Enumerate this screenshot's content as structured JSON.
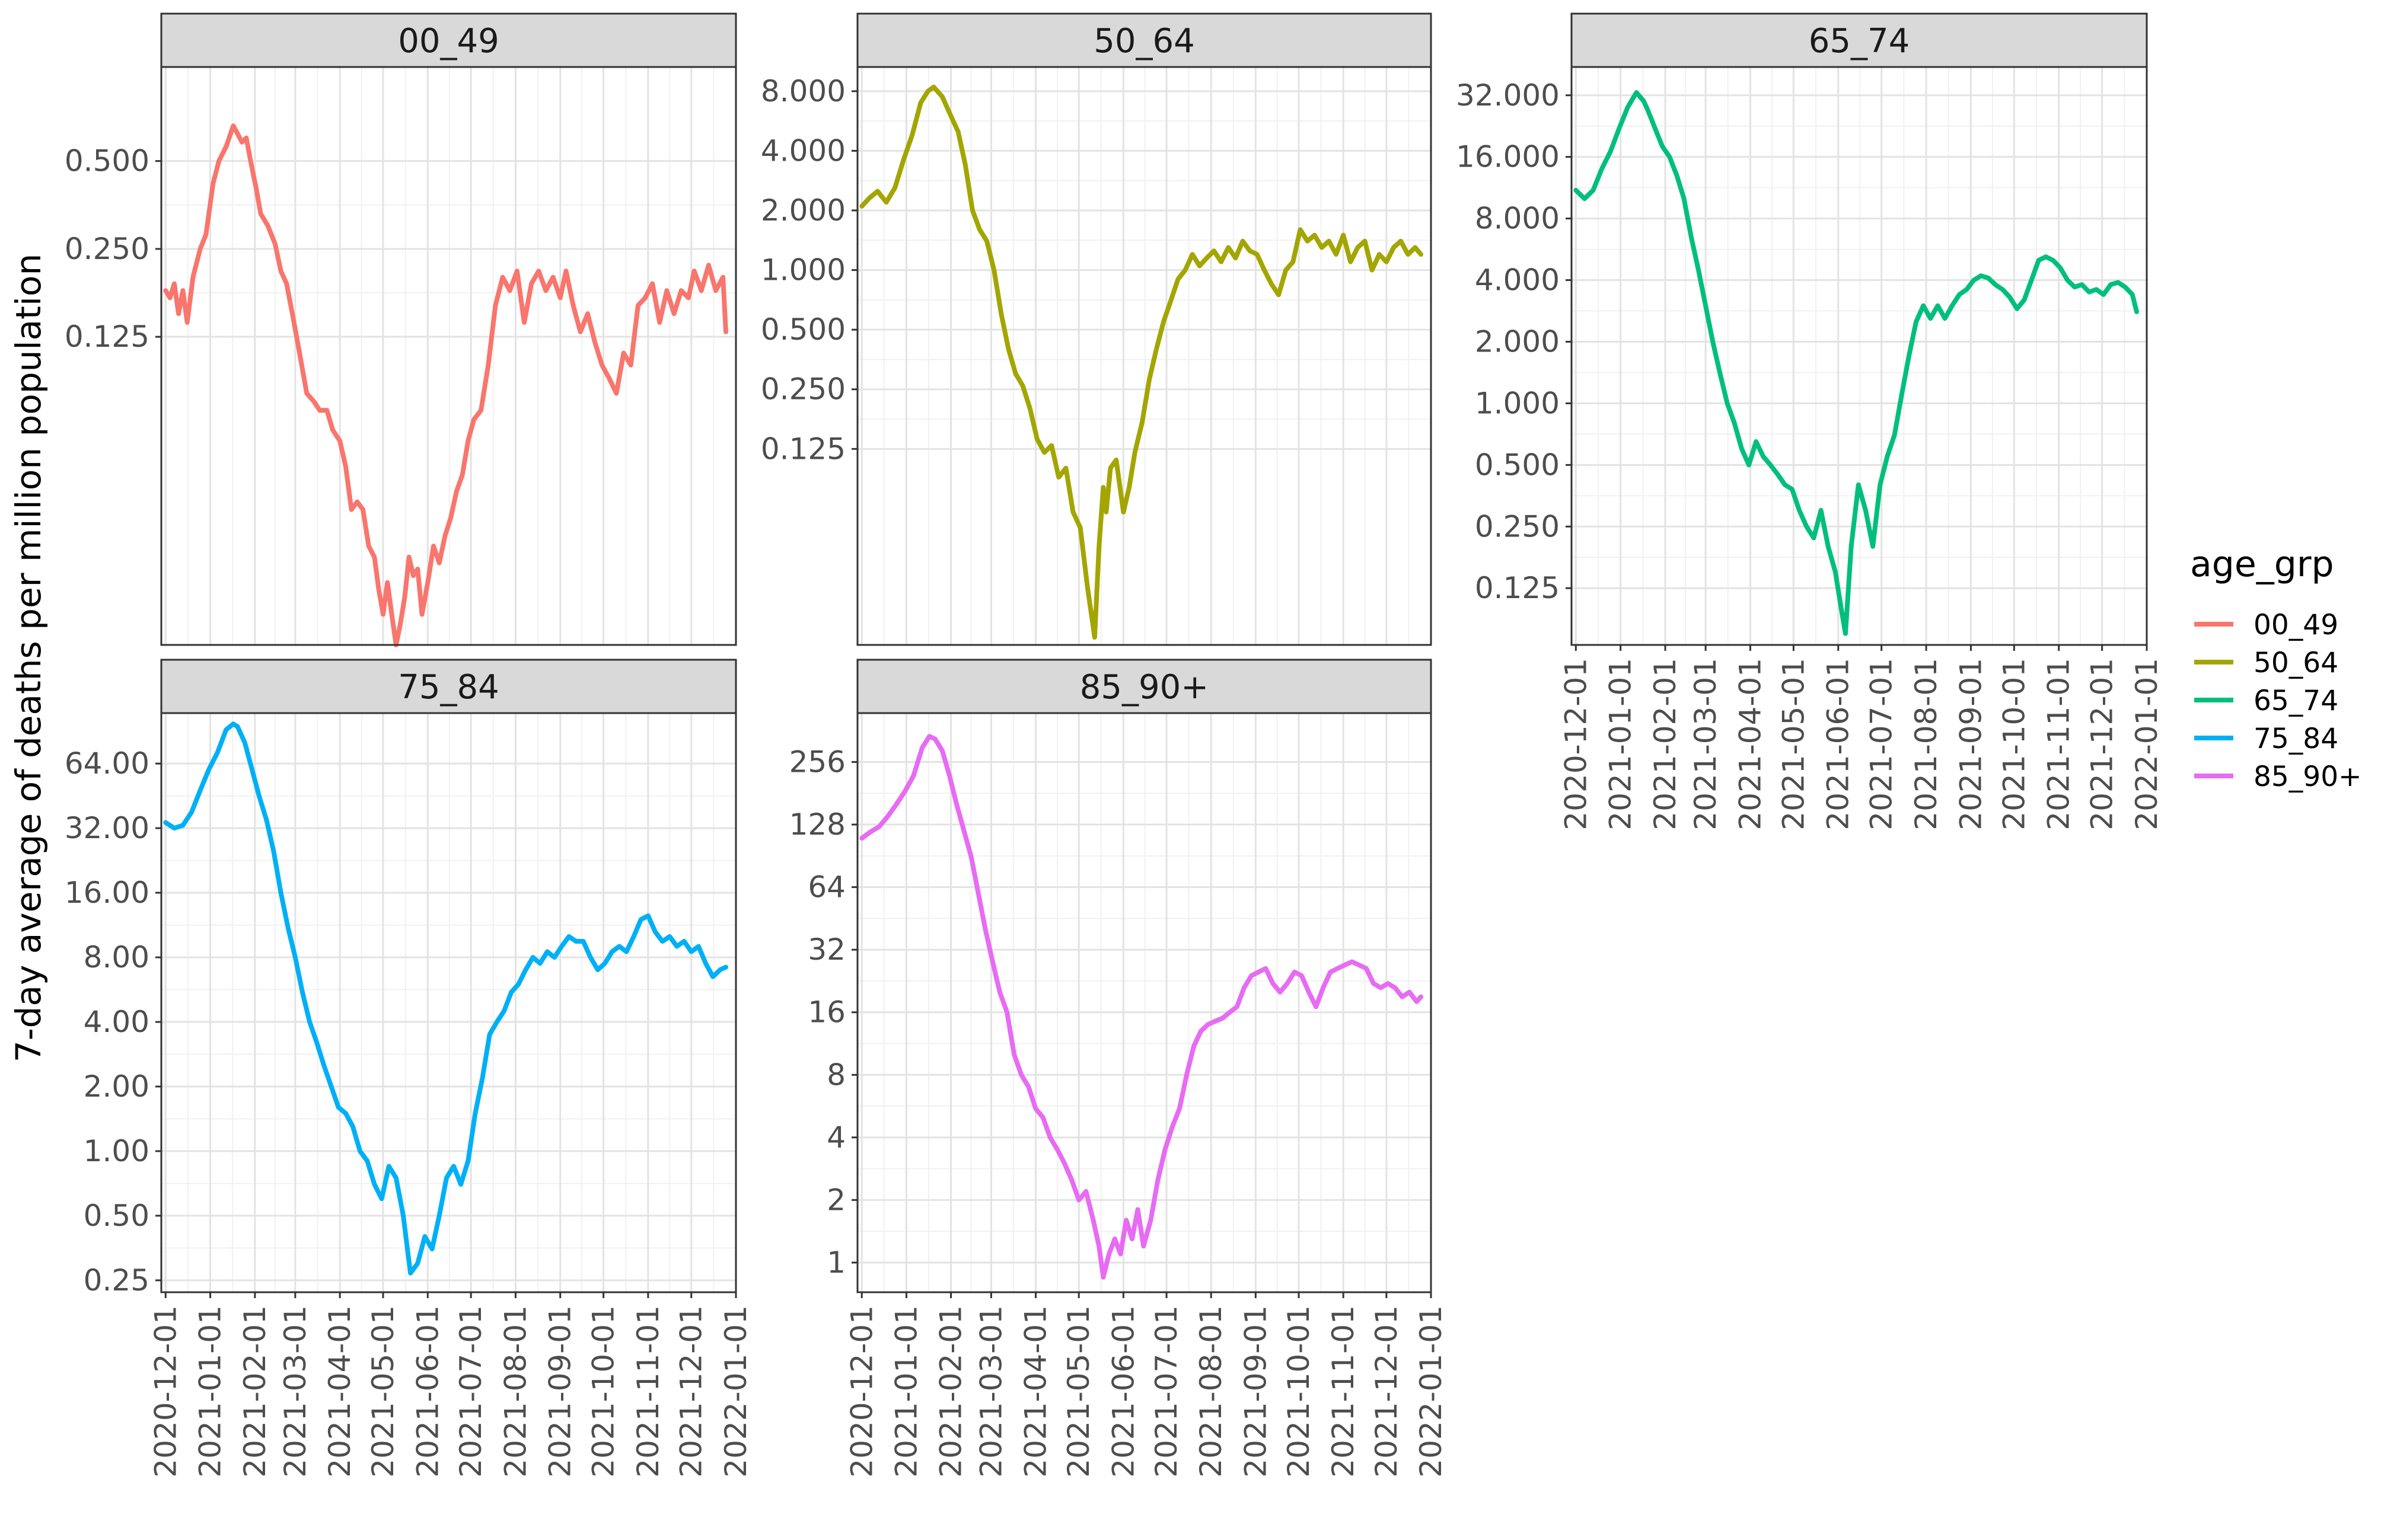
{
  "chart_data": {
    "type": "line",
    "title": "",
    "xlabel": "",
    "ylabel": "7-day average of deaths per million population",
    "x_scale": "date",
    "y_scale": "log2",
    "facet_layout": "wrap, 3 columns, free y scales, x axis shown at bottom of each column",
    "grid": true,
    "x_range": [
      "2020-11-28",
      "2022-01-01"
    ],
    "x_ticks": [
      "2020-12-01",
      "2021-01-01",
      "2021-02-01",
      "2021-03-01",
      "2021-04-01",
      "2021-05-01",
      "2021-06-01",
      "2021-07-01",
      "2021-08-01",
      "2021-09-01",
      "2021-10-01",
      "2021-11-01",
      "2021-12-01",
      "2022-01-01"
    ],
    "legend": {
      "title": "age_grp",
      "placement": "right",
      "entries": [
        {
          "name": "00_49",
          "color": "#F8766D"
        },
        {
          "name": "50_64",
          "color": "#A3A500"
        },
        {
          "name": "65_74",
          "color": "#00BF7D"
        },
        {
          "name": "75_84",
          "color": "#00B0F6"
        },
        {
          "name": "85_90+",
          "color": "#E76BF3"
        }
      ]
    },
    "panels": [
      {
        "name": "00_49",
        "color": "#F8766D",
        "ylim": [
          0.011,
          1.05
        ],
        "y_ticks": [
          0.5,
          0.25,
          0.125
        ],
        "y_tick_labels": [
          "0.500",
          "0.250",
          "0.125"
        ],
        "x": [
          "2020-12-01",
          "2020-12-04",
          "2020-12-07",
          "2020-12-10",
          "2020-12-13",
          "2020-12-16",
          "2020-12-20",
          "2020-12-25",
          "2020-12-29",
          "2021-01-03",
          "2021-01-07",
          "2021-01-12",
          "2021-01-17",
          "2021-01-20",
          "2021-01-23",
          "2021-01-26",
          "2021-01-29",
          "2021-02-02",
          "2021-02-05",
          "2021-02-10",
          "2021-02-15",
          "2021-02-19",
          "2021-02-23",
          "2021-02-27",
          "2021-03-04",
          "2021-03-09",
          "2021-03-14",
          "2021-03-18",
          "2021-03-23",
          "2021-03-27",
          "2021-04-01",
          "2021-04-05",
          "2021-04-09",
          "2021-04-13",
          "2021-04-17",
          "2021-04-21",
          "2021-04-25",
          "2021-04-28",
          "2021-05-01",
          "2021-05-04",
          "2021-05-07",
          "2021-05-10",
          "2021-05-13",
          "2021-05-16",
          "2021-05-19",
          "2021-05-22",
          "2021-05-25",
          "2021-05-28",
          "2021-06-01",
          "2021-06-05",
          "2021-06-09",
          "2021-06-13",
          "2021-06-17",
          "2021-06-21",
          "2021-06-25",
          "2021-06-29",
          "2021-07-03",
          "2021-07-08",
          "2021-07-13",
          "2021-07-18",
          "2021-07-23",
          "2021-07-28",
          "2021-08-02",
          "2021-08-07",
          "2021-08-12",
          "2021-08-17",
          "2021-08-22",
          "2021-08-27",
          "2021-09-01",
          "2021-09-05",
          "2021-09-10",
          "2021-09-15",
          "2021-09-20",
          "2021-09-25",
          "2021-09-30",
          "2021-10-05",
          "2021-10-10",
          "2021-10-15",
          "2021-10-20",
          "2021-10-25",
          "2021-10-30",
          "2021-11-04",
          "2021-11-09",
          "2021-11-14",
          "2021-11-19",
          "2021-11-24",
          "2021-11-29",
          "2021-12-03",
          "2021-12-08",
          "2021-12-13",
          "2021-12-18",
          "2021-12-23",
          "2021-12-25"
        ],
        "y": [
          0.18,
          0.17,
          0.19,
          0.15,
          0.18,
          0.14,
          0.2,
          0.25,
          0.28,
          0.42,
          0.5,
          0.56,
          0.66,
          0.62,
          0.58,
          0.6,
          0.5,
          0.4,
          0.33,
          0.3,
          0.26,
          0.21,
          0.19,
          0.15,
          0.11,
          0.08,
          0.075,
          0.07,
          0.07,
          0.06,
          0.055,
          0.045,
          0.032,
          0.034,
          0.032,
          0.024,
          0.022,
          0.017,
          0.014,
          0.018,
          0.014,
          0.011,
          0.013,
          0.016,
          0.022,
          0.019,
          0.02,
          0.014,
          0.018,
          0.024,
          0.021,
          0.026,
          0.03,
          0.037,
          0.042,
          0.055,
          0.065,
          0.07,
          0.1,
          0.16,
          0.2,
          0.18,
          0.21,
          0.14,
          0.19,
          0.21,
          0.18,
          0.2,
          0.17,
          0.21,
          0.16,
          0.13,
          0.15,
          0.12,
          0.1,
          0.09,
          0.08,
          0.11,
          0.1,
          0.16,
          0.17,
          0.19,
          0.14,
          0.18,
          0.15,
          0.18,
          0.17,
          0.21,
          0.18,
          0.22,
          0.18,
          0.2,
          0.13
        ]
      },
      {
        "name": "50_64",
        "color": "#A3A500",
        "ylim": [
          0.0128,
          10.6
        ],
        "y_ticks": [
          8,
          4,
          2,
          1,
          0.5,
          0.25,
          0.125
        ],
        "y_tick_labels": [
          "8.000",
          "4.000",
          "2.000",
          "1.000",
          "0.500",
          "0.250",
          "0.125"
        ],
        "x": [
          "2020-12-01",
          "2020-12-06",
          "2020-12-12",
          "2020-12-18",
          "2020-12-24",
          "2020-12-30",
          "2021-01-05",
          "2021-01-11",
          "2021-01-16",
          "2021-01-20",
          "2021-01-26",
          "2021-02-01",
          "2021-02-06",
          "2021-02-11",
          "2021-02-16",
          "2021-02-21",
          "2021-02-26",
          "2021-03-03",
          "2021-03-08",
          "2021-03-13",
          "2021-03-18",
          "2021-03-23",
          "2021-03-28",
          "2021-04-02",
          "2021-04-07",
          "2021-04-12",
          "2021-04-17",
          "2021-04-22",
          "2021-04-27",
          "2021-05-02",
          "2021-05-07",
          "2021-05-12",
          "2021-05-15",
          "2021-05-18",
          "2021-05-20",
          "2021-05-23",
          "2021-05-27",
          "2021-06-01",
          "2021-06-05",
          "2021-06-09",
          "2021-06-14",
          "2021-06-19",
          "2021-06-24",
          "2021-06-29",
          "2021-07-04",
          "2021-07-09",
          "2021-07-14",
          "2021-07-19",
          "2021-07-24",
          "2021-07-29",
          "2021-08-03",
          "2021-08-08",
          "2021-08-13",
          "2021-08-18",
          "2021-08-23",
          "2021-08-28",
          "2021-09-02",
          "2021-09-07",
          "2021-09-12",
          "2021-09-17",
          "2021-09-22",
          "2021-09-27",
          "2021-10-02",
          "2021-10-07",
          "2021-10-12",
          "2021-10-17",
          "2021-10-22",
          "2021-10-27",
          "2021-11-01",
          "2021-11-06",
          "2021-11-11",
          "2021-11-16",
          "2021-11-21",
          "2021-11-26",
          "2021-12-01",
          "2021-12-06",
          "2021-12-11",
          "2021-12-16",
          "2021-12-21",
          "2021-12-25"
        ],
        "y": [
          2.1,
          2.3,
          2.5,
          2.2,
          2.6,
          3.6,
          4.8,
          7.0,
          8.0,
          8.4,
          7.5,
          6.0,
          5.0,
          3.4,
          2.0,
          1.6,
          1.4,
          1.0,
          0.6,
          0.4,
          0.3,
          0.26,
          0.2,
          0.14,
          0.12,
          0.13,
          0.09,
          0.1,
          0.06,
          0.05,
          0.025,
          0.014,
          0.04,
          0.08,
          0.06,
          0.1,
          0.11,
          0.06,
          0.08,
          0.12,
          0.17,
          0.28,
          0.4,
          0.55,
          0.7,
          0.9,
          1.0,
          1.2,
          1.05,
          1.15,
          1.25,
          1.1,
          1.3,
          1.15,
          1.4,
          1.25,
          1.2,
          1.0,
          0.85,
          0.75,
          1.0,
          1.1,
          1.6,
          1.4,
          1.5,
          1.3,
          1.4,
          1.2,
          1.5,
          1.1,
          1.3,
          1.4,
          1.0,
          1.2,
          1.1,
          1.3,
          1.4,
          1.2,
          1.3,
          1.2
        ]
      },
      {
        "name": "65_74",
        "color": "#00BF7D",
        "ylim": [
          0.066,
          44
        ],
        "y_ticks": [
          32,
          16,
          8,
          4,
          2,
          1,
          0.5,
          0.25,
          0.125
        ],
        "y_tick_labels": [
          "32.000",
          "16.000",
          "8.000",
          "4.000",
          "2.000",
          "1.000",
          "0.500",
          "0.250",
          "0.125"
        ],
        "x": [
          "2020-12-01",
          "2020-12-07",
          "2020-12-13",
          "2020-12-19",
          "2020-12-25",
          "2020-12-31",
          "2021-01-06",
          "2021-01-12",
          "2021-01-17",
          "2021-01-20",
          "2021-01-25",
          "2021-01-30",
          "2021-02-04",
          "2021-02-09",
          "2021-02-14",
          "2021-02-19",
          "2021-02-24",
          "2021-03-01",
          "2021-03-06",
          "2021-03-11",
          "2021-03-16",
          "2021-03-21",
          "2021-03-26",
          "2021-03-31",
          "2021-04-05",
          "2021-04-10",
          "2021-04-15",
          "2021-04-20",
          "2021-04-25",
          "2021-04-30",
          "2021-05-05",
          "2021-05-10",
          "2021-05-15",
          "2021-05-20",
          "2021-05-25",
          "2021-05-30",
          "2021-06-03",
          "2021-06-06",
          "2021-06-10",
          "2021-06-15",
          "2021-06-20",
          "2021-06-25",
          "2021-06-30",
          "2021-07-05",
          "2021-07-10",
          "2021-07-15",
          "2021-07-20",
          "2021-07-25",
          "2021-07-30",
          "2021-08-04",
          "2021-08-09",
          "2021-08-14",
          "2021-08-19",
          "2021-08-24",
          "2021-08-29",
          "2021-09-03",
          "2021-09-08",
          "2021-09-13",
          "2021-09-18",
          "2021-09-23",
          "2021-09-28",
          "2021-10-03",
          "2021-10-08",
          "2021-10-13",
          "2021-10-18",
          "2021-10-23",
          "2021-10-28",
          "2021-11-02",
          "2021-11-07",
          "2021-11-12",
          "2021-11-17",
          "2021-11-22",
          "2021-11-27",
          "2021-12-02",
          "2021-12-07",
          "2021-12-12",
          "2021-12-17",
          "2021-12-22",
          "2021-12-25"
        ],
        "y": [
          11,
          10,
          11,
          14,
          17,
          22,
          28,
          33,
          30,
          27,
          22,
          18,
          16,
          13,
          10,
          6.5,
          4.5,
          3.0,
          2.0,
          1.4,
          1.0,
          0.8,
          0.6,
          0.5,
          0.65,
          0.55,
          0.5,
          0.45,
          0.4,
          0.38,
          0.3,
          0.25,
          0.22,
          0.3,
          0.2,
          0.15,
          0.1,
          0.075,
          0.2,
          0.4,
          0.3,
          0.2,
          0.4,
          0.55,
          0.7,
          1.1,
          1.7,
          2.5,
          3.0,
          2.6,
          3.0,
          2.6,
          3.0,
          3.4,
          3.6,
          4.0,
          4.2,
          4.1,
          3.8,
          3.6,
          3.3,
          2.9,
          3.2,
          4.0,
          5.0,
          5.2,
          5.0,
          4.6,
          4.0,
          3.7,
          3.8,
          3.5,
          3.6,
          3.4,
          3.8,
          3.9,
          3.7,
          3.4,
          2.8
        ]
      },
      {
        "name": "75_84",
        "color": "#00B0F6",
        "ylim": [
          0.22,
          110
        ],
        "y_ticks": [
          64,
          32,
          16,
          8,
          4,
          2,
          1,
          0.5,
          0.25
        ],
        "y_tick_labels": [
          "64.00",
          "32.00",
          "16.00",
          "8.00",
          "4.00",
          "2.00",
          "1.00",
          "0.50",
          "0.25"
        ],
        "x": [
          "2020-12-01",
          "2020-12-07",
          "2020-12-13",
          "2020-12-19",
          "2020-12-25",
          "2020-12-31",
          "2021-01-06",
          "2021-01-12",
          "2021-01-17",
          "2021-01-20",
          "2021-01-25",
          "2021-01-30",
          "2021-02-04",
          "2021-02-09",
          "2021-02-14",
          "2021-02-19",
          "2021-02-24",
          "2021-03-01",
          "2021-03-06",
          "2021-03-11",
          "2021-03-16",
          "2021-03-21",
          "2021-03-26",
          "2021-03-31",
          "2021-04-05",
          "2021-04-10",
          "2021-04-15",
          "2021-04-20",
          "2021-04-25",
          "2021-04-30",
          "2021-05-05",
          "2021-05-10",
          "2021-05-15",
          "2021-05-20",
          "2021-05-25",
          "2021-05-30",
          "2021-06-04",
          "2021-06-09",
          "2021-06-14",
          "2021-06-19",
          "2021-06-24",
          "2021-06-29",
          "2021-07-04",
          "2021-07-09",
          "2021-07-14",
          "2021-07-19",
          "2021-07-24",
          "2021-07-29",
          "2021-08-03",
          "2021-08-08",
          "2021-08-13",
          "2021-08-18",
          "2021-08-23",
          "2021-08-28",
          "2021-09-02",
          "2021-09-07",
          "2021-09-12",
          "2021-09-17",
          "2021-09-22",
          "2021-09-27",
          "2021-10-02",
          "2021-10-07",
          "2021-10-12",
          "2021-10-17",
          "2021-10-22",
          "2021-10-27",
          "2021-11-01",
          "2021-11-06",
          "2021-11-11",
          "2021-11-16",
          "2021-11-21",
          "2021-11-26",
          "2021-12-01",
          "2021-12-06",
          "2021-12-11",
          "2021-12-16",
          "2021-12-21",
          "2021-12-25"
        ],
        "y": [
          34,
          32,
          33,
          38,
          48,
          60,
          72,
          92,
          98,
          95,
          80,
          60,
          45,
          35,
          25,
          16,
          11,
          8.0,
          5.5,
          4.0,
          3.2,
          2.5,
          2.0,
          1.6,
          1.5,
          1.3,
          1.0,
          0.9,
          0.7,
          0.6,
          0.85,
          0.75,
          0.5,
          0.27,
          0.3,
          0.4,
          0.35,
          0.5,
          0.75,
          0.85,
          0.7,
          0.9,
          1.5,
          2.2,
          3.5,
          4.0,
          4.5,
          5.5,
          6.0,
          7.0,
          8.0,
          7.5,
          8.5,
          8.0,
          9.0,
          10.0,
          9.5,
          9.5,
          8.0,
          7.0,
          7.5,
          8.5,
          9.0,
          8.5,
          10.0,
          12.0,
          12.5,
          10.5,
          9.5,
          10.0,
          9.0,
          9.5,
          8.5,
          9.0,
          7.5,
          6.5,
          7.0,
          7.2
        ]
      },
      {
        "name": "85_90+",
        "color": "#E76BF3",
        "ylim": [
          0.72,
          440
        ],
        "y_ticks": [
          256,
          128,
          64,
          32,
          16,
          8,
          4,
          2,
          1
        ],
        "y_tick_labels": [
          "256",
          "128",
          "64",
          "32",
          "16",
          "8",
          "4",
          "2",
          "1"
        ],
        "x": [
          "2020-12-01",
          "2020-12-07",
          "2020-12-13",
          "2020-12-19",
          "2020-12-25",
          "2020-12-31",
          "2021-01-06",
          "2021-01-12",
          "2021-01-17",
          "2021-01-21",
          "2021-01-26",
          "2021-01-31",
          "2021-02-05",
          "2021-02-10",
          "2021-02-15",
          "2021-02-20",
          "2021-02-25",
          "2021-03-02",
          "2021-03-07",
          "2021-03-12",
          "2021-03-17",
          "2021-03-22",
          "2021-03-27",
          "2021-04-01",
          "2021-04-06",
          "2021-04-11",
          "2021-04-16",
          "2021-04-21",
          "2021-04-26",
          "2021-05-01",
          "2021-05-06",
          "2021-05-11",
          "2021-05-15",
          "2021-05-18",
          "2021-05-22",
          "2021-05-26",
          "2021-05-30",
          "2021-06-03",
          "2021-06-07",
          "2021-06-11",
          "2021-06-15",
          "2021-06-20",
          "2021-06-25",
          "2021-06-30",
          "2021-07-05",
          "2021-07-10",
          "2021-07-15",
          "2021-07-20",
          "2021-07-25",
          "2021-07-30",
          "2021-08-04",
          "2021-08-09",
          "2021-08-14",
          "2021-08-19",
          "2021-08-24",
          "2021-08-29",
          "2021-09-03",
          "2021-09-08",
          "2021-09-13",
          "2021-09-18",
          "2021-09-23",
          "2021-09-28",
          "2021-10-03",
          "2021-10-08",
          "2021-10-13",
          "2021-10-18",
          "2021-10-23",
          "2021-10-28",
          "2021-11-02",
          "2021-11-07",
          "2021-11-12",
          "2021-11-17",
          "2021-11-22",
          "2021-11-27",
          "2021-12-02",
          "2021-12-07",
          "2021-12-12",
          "2021-12-17",
          "2021-12-22",
          "2021-12-25"
        ],
        "y": [
          110,
          118,
          125,
          140,
          160,
          185,
          220,
          300,
          340,
          330,
          290,
          220,
          160,
          120,
          90,
          60,
          40,
          28,
          20,
          16,
          10,
          8.0,
          7.0,
          5.5,
          5.0,
          4.0,
          3.5,
          3.0,
          2.5,
          2.0,
          2.2,
          1.6,
          1.2,
          0.85,
          1.1,
          1.3,
          1.1,
          1.6,
          1.3,
          1.8,
          1.2,
          1.6,
          2.5,
          3.5,
          4.5,
          5.5,
          8.0,
          11,
          13,
          14,
          14.5,
          15,
          16,
          17,
          21,
          24,
          25,
          26,
          22,
          20,
          22,
          25,
          24,
          20,
          17,
          21,
          25,
          26,
          27,
          28,
          27,
          26,
          22,
          21,
          22,
          21,
          19,
          20,
          18,
          19
        ]
      }
    ]
  }
}
